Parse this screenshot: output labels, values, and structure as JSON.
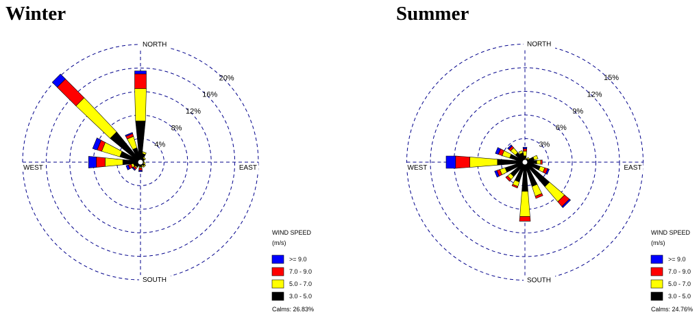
{
  "titles": {
    "winter": "Winter",
    "summer": "Summer"
  },
  "chart_data": [
    {
      "type": "windrose",
      "title": "Winter",
      "directions": [
        "N",
        "NNE",
        "NE",
        "ENE",
        "E",
        "ESE",
        "SE",
        "SSE",
        "S",
        "SSW",
        "SW",
        "WSW",
        "W",
        "WNW",
        "NW",
        "NNW"
      ],
      "direction_labels": {
        "north": "NORTH",
        "east": "EAST",
        "south": "SOUTH",
        "west": "WEST"
      },
      "rings": [
        4,
        8,
        12,
        16,
        20
      ],
      "ring_labels": [
        "4%",
        "8%",
        "12%",
        "16%",
        "20%"
      ],
      "speed_bins": [
        "3.0 - 5.0",
        "5.0 - 7.0",
        "7.0 - 9.0",
        ">= 9.0"
      ],
      "colors": [
        "#000000",
        "#ffff00",
        "#ff0000",
        "#0000ff"
      ],
      "series": [
        {
          "name": "3.0 - 5.0",
          "values": [
            7.0,
            1.5,
            0.8,
            0.5,
            0.4,
            0.5,
            0.8,
            0.6,
            0.8,
            0.6,
            1.0,
            1.2,
            3.0,
            3.6,
            6.5,
            2.5
          ]
        },
        {
          "name": "5.0 - 7.0",
          "values": [
            5.5,
            0.3,
            0.2,
            0.1,
            0.1,
            0.3,
            0.2,
            0.2,
            0.2,
            0.1,
            0.2,
            0.4,
            3.0,
            3.2,
            8.0,
            2.0
          ]
        },
        {
          "name": "7.0 - 9.0",
          "values": [
            2.5,
            0,
            0,
            0,
            0,
            0,
            0,
            0,
            0.4,
            0,
            0.3,
            0.5,
            1.5,
            0.8,
            4.5,
            0.5
          ]
        },
        {
          "name": ">= 9.0",
          "values": [
            0.5,
            0,
            0,
            0,
            0,
            0,
            0,
            0,
            0.2,
            0,
            0.2,
            0.4,
            1.3,
            0.8,
            1.2,
            0.2
          ]
        }
      ],
      "legend": {
        "title_line1": "WIND SPEED",
        "title_line2": "(m/s)",
        "calms": "Calms: 26.83%",
        "entries": [
          ">= 9.0",
          "7.0 - 9.0",
          "5.0 - 7.0",
          "3.0 - 5.0"
        ]
      }
    },
    {
      "type": "windrose",
      "title": "Summer",
      "directions": [
        "N",
        "NNE",
        "NE",
        "ENE",
        "E",
        "ESE",
        "SE",
        "SSE",
        "S",
        "SSW",
        "SW",
        "WSW",
        "W",
        "WNW",
        "NW",
        "NNW"
      ],
      "direction_labels": {
        "north": "NORTH",
        "east": "EAST",
        "south": "SOUTH",
        "west": "WEST"
      },
      "rings": [
        3,
        6,
        9,
        12,
        15
      ],
      "ring_labels": [
        "3%",
        "6%",
        "9%",
        "12%",
        "15%"
      ],
      "speed_bins": [
        "3.0 - 5.0",
        "5.0 - 7.0",
        "7.0 - 9.0",
        ">= 9.0"
      ],
      "colors": [
        "#000000",
        "#ffff00",
        "#ff0000",
        "#0000ff"
      ],
      "series": [
        {
          "name": "3.0 - 5.0",
          "values": [
            0.8,
            0.3,
            0.5,
            1.2,
            1.5,
            2.0,
            4.0,
            3.2,
            3.7,
            2.6,
            2.3,
            2.6,
            3.5,
            2.0,
            1.5,
            1.2
          ]
        },
        {
          "name": "5.0 - 7.0",
          "values": [
            0.6,
            0.2,
            0.2,
            0.5,
            0.5,
            0.6,
            2.5,
            1.3,
            3.2,
            0.6,
            0.5,
            0.7,
            3.5,
            1.0,
            0.8,
            0.3
          ]
        },
        {
          "name": "7.0 - 9.0",
          "values": [
            0.3,
            0,
            0,
            0,
            0.2,
            0.4,
            0.8,
            0.3,
            0.6,
            0.2,
            0.3,
            0.4,
            1.8,
            0.5,
            0.3,
            0
          ]
        },
        {
          "name": ">= 9.0",
          "values": [
            0.2,
            0,
            0,
            0,
            0,
            0.2,
            0.2,
            0,
            0,
            0,
            0,
            0.3,
            1.2,
            0.4,
            0.2,
            0
          ]
        }
      ],
      "legend": {
        "title_line1": "WIND SPEED",
        "title_line2": "(m/s)",
        "calms": "Calms: 24.76%",
        "entries": [
          ">= 9.0",
          "7.0 - 9.0",
          "5.0 - 7.0",
          "3.0 - 5.0"
        ]
      }
    }
  ]
}
